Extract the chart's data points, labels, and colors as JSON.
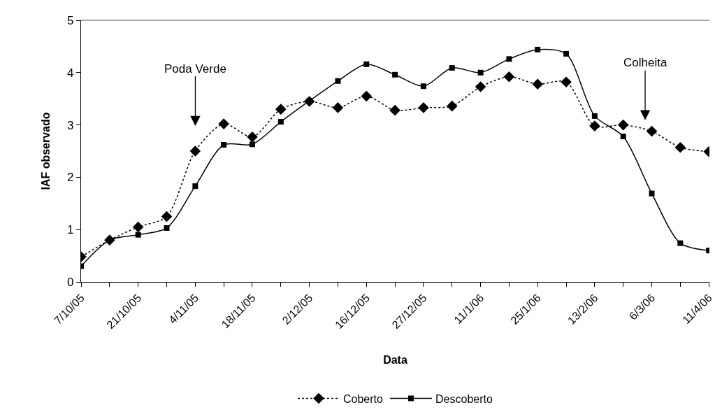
{
  "chart_data": {
    "type": "line",
    "xlabel": "Data",
    "ylabel": "IAF observado",
    "categories": [
      "7/10/05",
      null,
      "21/10/05",
      null,
      "4/11/05",
      null,
      "18/11/05",
      null,
      "2/12/05",
      null,
      "16/12/05",
      null,
      "27/12/05",
      null,
      "11/1/06",
      null,
      "25/1/06",
      null,
      "13/2/06",
      null,
      "6/3/06",
      null,
      "11/4/06"
    ],
    "series": [
      {
        "name": "Coberto",
        "color": "#000000",
        "marker": "diamond",
        "line_style": "dotted",
        "values": [
          0.48,
          0.8,
          1.05,
          1.25,
          2.5,
          3.02,
          2.77,
          3.3,
          3.45,
          3.33,
          3.55,
          3.28,
          3.33,
          3.36,
          3.73,
          3.92,
          3.78,
          3.82,
          2.98,
          3.0,
          2.88,
          2.57,
          2.49
        ]
      },
      {
        "name": "Descoberto",
        "color": "#000000",
        "marker": "square",
        "line_style": "solid",
        "values": [
          0.3,
          0.8,
          0.9,
          1.03,
          1.83,
          2.62,
          2.63,
          3.06,
          3.46,
          3.84,
          4.16,
          3.96,
          3.74,
          4.09,
          4.0,
          4.26,
          4.44,
          4.36,
          3.17,
          2.78,
          1.69,
          0.74,
          0.6
        ]
      }
    ],
    "ylim": [
      0,
      5
    ],
    "yticks": [
      0,
      1,
      2,
      3,
      4,
      5
    ],
    "grid": false,
    "legend": "bottom",
    "annotations": [
      "Poda Verde",
      "Colheita"
    ]
  }
}
